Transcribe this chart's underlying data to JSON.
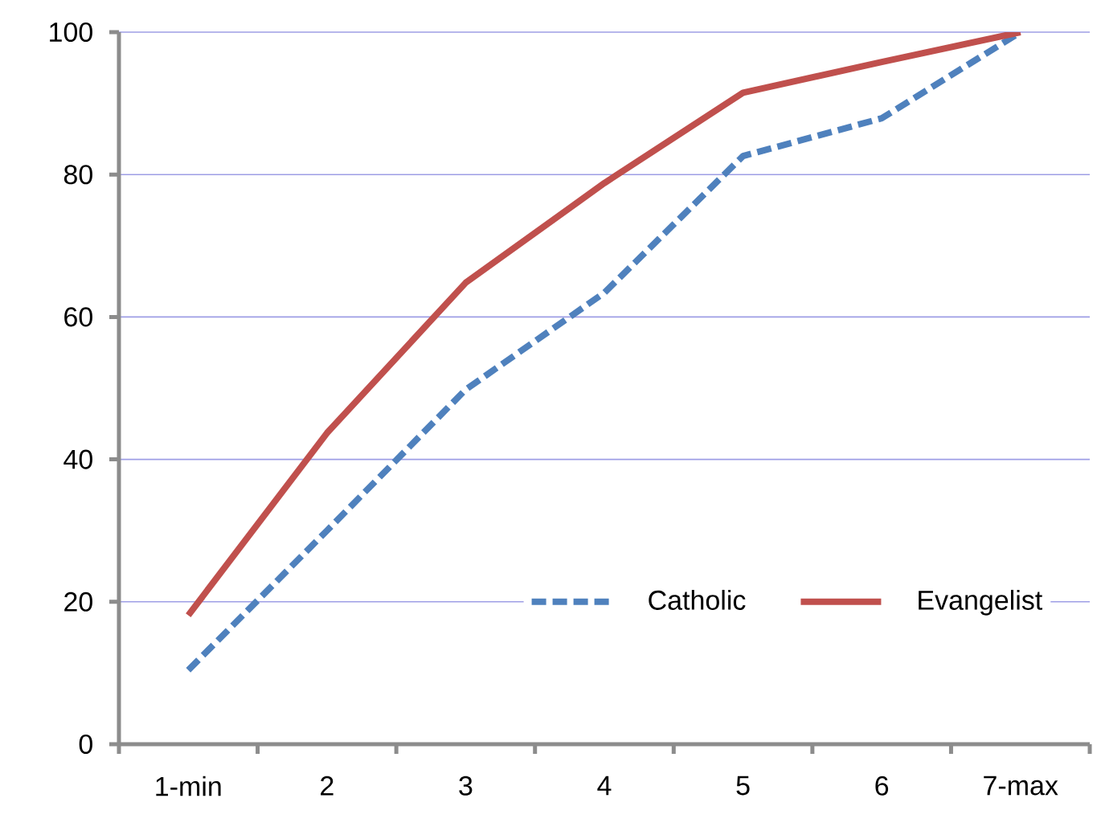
{
  "chart_data": {
    "type": "line",
    "categories": [
      "1-min",
      "2",
      "3",
      "4",
      "5",
      "6",
      "7-max"
    ],
    "series": [
      {
        "name": "Catholic",
        "color": "#4f81bd",
        "line_style": "dashed",
        "values": [
          10.4,
          30,
          49.8,
          63.4,
          82.6,
          87.9,
          100
        ]
      },
      {
        "name": "Evangelist",
        "color": "#c0504d",
        "line_style": "solid",
        "values": [
          18.1,
          43.7,
          64.8,
          78.8,
          91.5,
          95.8,
          100
        ]
      }
    ],
    "ylim": [
      0,
      100
    ],
    "yticks": [
      0,
      20,
      40,
      60,
      80,
      100
    ],
    "grid": "y",
    "legend": "bottom right",
    "marker": "none"
  }
}
